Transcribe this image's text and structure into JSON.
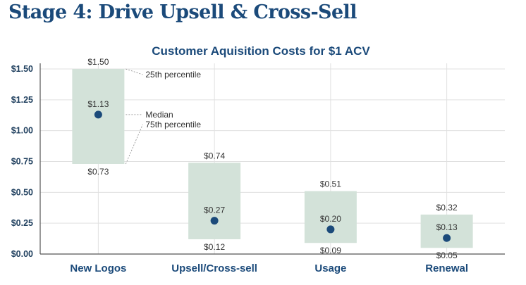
{
  "page": {
    "title": "Stage 4: Drive Upsell & Cross-Sell"
  },
  "chart_data": {
    "type": "box",
    "title": "Customer Aquisition Costs for $1 ACV",
    "categories": [
      "New Logos",
      "Upsell/Cross-sell",
      "Usage",
      "Renewal"
    ],
    "upper": [
      1.5,
      0.74,
      0.51,
      0.32
    ],
    "median": [
      1.13,
      0.27,
      0.2,
      0.13
    ],
    "lower": [
      0.73,
      0.12,
      0.09,
      0.05
    ],
    "upper_labels": [
      "$1.50",
      "$0.74",
      "$0.51",
      "$0.32"
    ],
    "median_labels": [
      "$1.13",
      "$0.27",
      "$0.20",
      "$0.13"
    ],
    "lower_labels": [
      "$0.73",
      "$0.12",
      "$0.09",
      "$0.05"
    ],
    "y_ticks": [
      0,
      0.25,
      0.5,
      0.75,
      1.0,
      1.25,
      1.5
    ],
    "y_tick_labels": [
      "$0.00",
      "$0.25",
      "$0.50",
      "$0.75",
      "$1.00",
      "$1.25",
      "$1.50"
    ],
    "ylim": [
      0,
      1.5
    ],
    "grid": true,
    "annotations": [
      "25th percentile",
      "Median",
      "75th percentile"
    ],
    "colors": {
      "box": "#d3e2d9",
      "marker": "#1b4a7a",
      "title": "#1b4a7a",
      "grid": "#e0e0e0"
    }
  }
}
